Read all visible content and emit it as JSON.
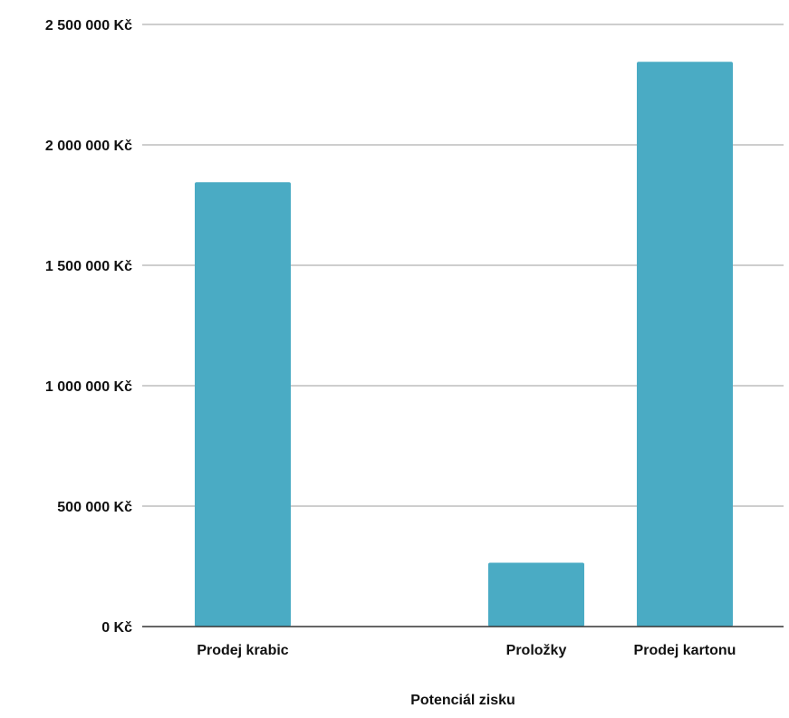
{
  "chart_data": {
    "type": "bar",
    "categories": [
      "Prodej krabic",
      "",
      "Proložky",
      "Prodej kartonu"
    ],
    "values": [
      1845000,
      null,
      265000,
      2345000
    ],
    "xlabel": "Potenciál zisku",
    "ylabel": "",
    "ylim": [
      0,
      2500000
    ],
    "yticks": [
      {
        "value": 0,
        "label": "0 Kč"
      },
      {
        "value": 500000,
        "label": "500 000 Kč"
      },
      {
        "value": 1000000,
        "label": "1 000 000 Kč"
      },
      {
        "value": 1500000,
        "label": "1 500 000 Kč"
      },
      {
        "value": 2000000,
        "label": "2 000 000 Kč"
      },
      {
        "value": 2500000,
        "label": "2 500 000 Kč"
      }
    ],
    "grid": true,
    "legend": "none",
    "bar_color": "#4aabc4",
    "grid_color": "#bdbdbd",
    "axis_color": "#333333"
  }
}
